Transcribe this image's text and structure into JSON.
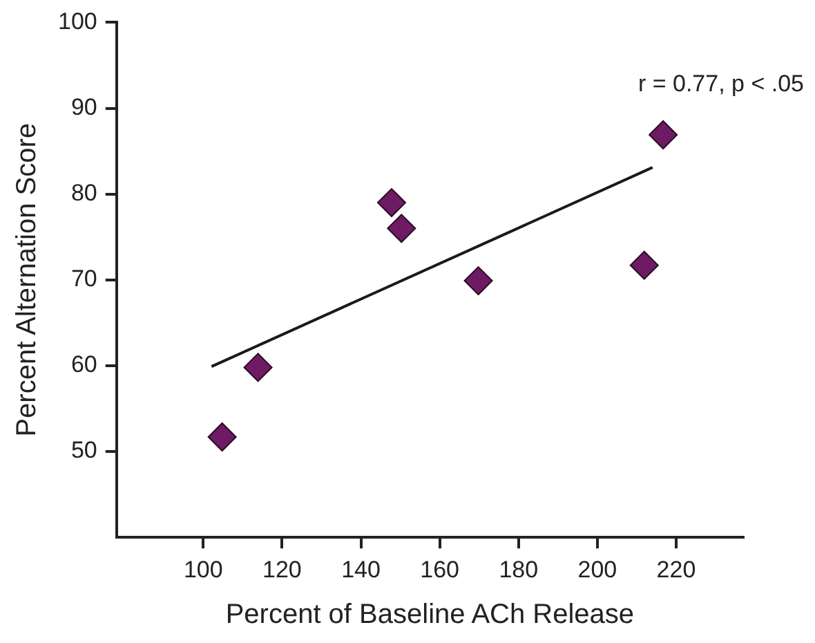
{
  "chart_data": {
    "type": "scatter",
    "xlabel": "Percent of Baseline ACh Release",
    "ylabel": "Percent Alternation Score",
    "annotations": [
      "r = 0.77, p < .05"
    ],
    "series": [
      {
        "color": "#6e1b63",
        "marker": "diamond",
        "x": [
          104.8,
          113.9,
          147.8,
          150.3,
          169.8,
          211.9,
          216.7
        ],
        "values": [
          51.7,
          59.8,
          79.0,
          76.0,
          69.9,
          71.7,
          86.9
        ]
      },
      {
        "type": "line",
        "color": "#1a1a1a",
        "marker": "none",
        "x": [
          102.1,
          214
        ],
        "values": [
          59.9,
          83.1
        ]
      }
    ],
    "xlim": [
      78,
      237
    ],
    "xticks": [
      100,
      120,
      140,
      160,
      180,
      200,
      220
    ],
    "ylim": [
      40,
      100
    ],
    "yticks": [
      50,
      60,
      70,
      80,
      90,
      100
    ],
    "grid": false,
    "legend": false
  }
}
